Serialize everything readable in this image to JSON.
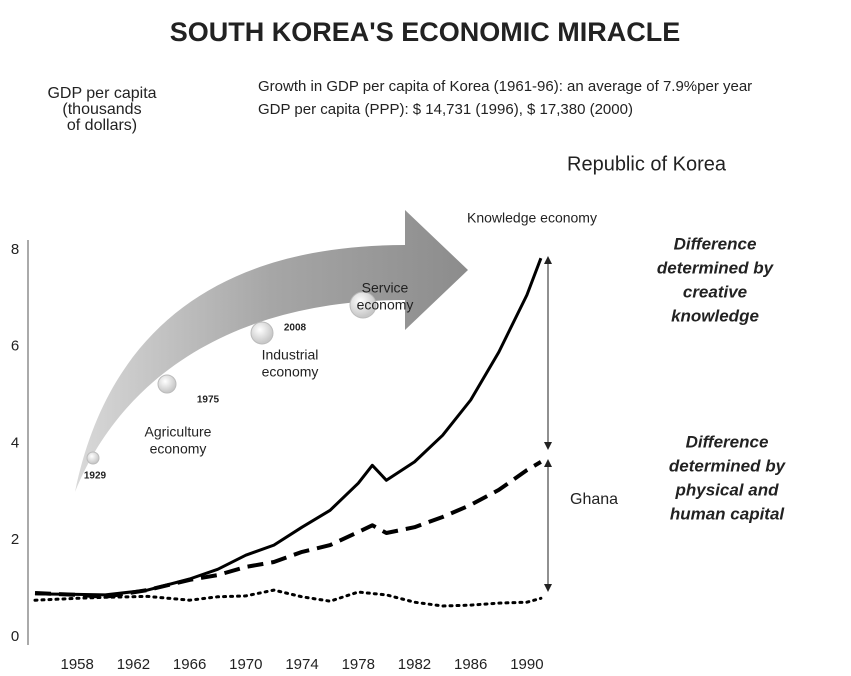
{
  "chart_data": {
    "type": "line",
    "title": "SOUTH KOREA'S ECONOMIC MIRACLE",
    "y_label": [
      "GDP per capita",
      "(thousands",
      "of dollars)"
    ],
    "notes": [
      "Growth in GDP per capita of Korea (1961-96): an average of 7.9%per year",
      "GDP per capita (PPP): $ 14,731 (1996), $ 17,380 (2000)"
    ],
    "x": [
      1955,
      1958,
      1960,
      1963,
      1966,
      1968,
      1970,
      1972,
      1974,
      1976,
      1978,
      1979,
      1980,
      1982,
      1984,
      1986,
      1988,
      1990,
      1991
    ],
    "series": [
      {
        "name": "Republic of Korea",
        "color": "#000000",
        "style": "solid",
        "values": [
          0.89,
          0.88,
          0.87,
          0.97,
          1.2,
          1.4,
          1.69,
          1.9,
          2.27,
          2.62,
          3.18,
          3.55,
          3.24,
          3.62,
          4.17,
          4.9,
          5.89,
          7.07,
          7.83
        ]
      },
      {
        "color": "#000000",
        "style": "dashed",
        "values": [
          0.91,
          0.87,
          0.83,
          0.97,
          1.18,
          1.28,
          1.45,
          1.55,
          1.76,
          1.9,
          2.17,
          2.31,
          2.15,
          2.27,
          2.48,
          2.73,
          3.04,
          3.45,
          3.62
        ]
      },
      {
        "name": "Ghana",
        "color": "#000000",
        "style": "dotted",
        "values": [
          0.76,
          0.8,
          0.82,
          0.84,
          0.76,
          0.83,
          0.85,
          0.97,
          0.83,
          0.74,
          0.93,
          0.9,
          0.87,
          0.72,
          0.64,
          0.66,
          0.7,
          0.72,
          0.8
        ]
      }
    ],
    "xlim": [
      1954.5,
      1992
    ],
    "xticks": [
      1958,
      1962,
      1966,
      1970,
      1974,
      1978,
      1982,
      1986,
      1990
    ],
    "ylim": [
      0,
      8
    ],
    "yticks": [
      0,
      2,
      4,
      6,
      8
    ],
    "stages": [
      {
        "label": [
          "Agriculture",
          "economy"
        ],
        "year": "1929"
      },
      {
        "label": [],
        "year": "1975"
      },
      {
        "label": [
          "Industrial",
          "economy"
        ],
        "year": "2008"
      },
      {
        "label": [
          "Service",
          "economy"
        ]
      },
      {
        "label": [
          "Knowledge economy"
        ]
      }
    ],
    "annotations": [
      [
        "Difference",
        "determined by",
        "creative",
        "knowledge"
      ],
      [
        "Difference",
        "determined by",
        "physical and",
        "human capital"
      ]
    ]
  }
}
